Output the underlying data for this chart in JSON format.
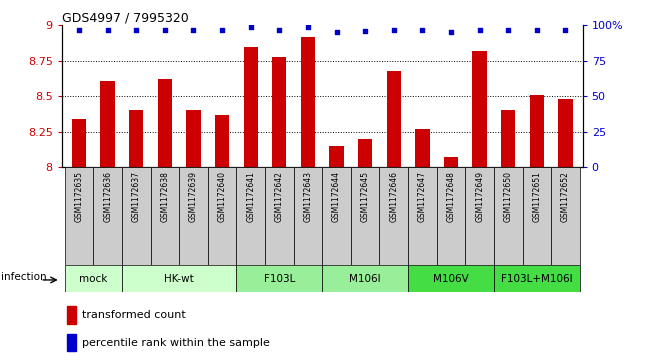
{
  "title": "GDS4997 / 7995320",
  "samples": [
    "GSM1172635",
    "GSM1172636",
    "GSM1172637",
    "GSM1172638",
    "GSM1172639",
    "GSM1172640",
    "GSM1172641",
    "GSM1172642",
    "GSM1172643",
    "GSM1172644",
    "GSM1172645",
    "GSM1172646",
    "GSM1172647",
    "GSM1172648",
    "GSM1172649",
    "GSM1172650",
    "GSM1172651",
    "GSM1172652"
  ],
  "bar_values": [
    8.34,
    8.61,
    8.4,
    8.62,
    8.4,
    8.37,
    8.85,
    8.78,
    8.92,
    8.15,
    8.2,
    8.68,
    8.27,
    8.07,
    8.82,
    8.4,
    8.51,
    8.48
  ],
  "percentile_values": [
    97,
    97,
    97,
    97,
    97,
    97,
    99,
    97,
    99,
    95,
    96,
    97,
    97,
    95,
    97,
    97,
    97,
    97
  ],
  "bar_color": "#cc0000",
  "dot_color": "#0000cc",
  "ylim_left": [
    8.0,
    9.0
  ],
  "ylim_right": [
    0,
    100
  ],
  "yticks_left": [
    8.0,
    8.25,
    8.5,
    8.75,
    9.0
  ],
  "yticks_right": [
    0,
    25,
    50,
    75,
    100
  ],
  "ytick_labels_right": [
    "0",
    "25",
    "50",
    "75",
    "100%"
  ],
  "ytick_labels_left": [
    "8",
    "8.25",
    "8.5",
    "8.75",
    "9"
  ],
  "group_ranges": [
    {
      "label": "mock",
      "start": 0,
      "end": 1,
      "color": "#ccffcc"
    },
    {
      "label": "HK-wt",
      "start": 2,
      "end": 5,
      "color": "#ccffcc"
    },
    {
      "label": "F103L",
      "start": 6,
      "end": 8,
      "color": "#99ee99"
    },
    {
      "label": "M106I",
      "start": 9,
      "end": 11,
      "color": "#99ee99"
    },
    {
      "label": "M106V",
      "start": 12,
      "end": 14,
      "color": "#44dd44"
    },
    {
      "label": "F103L+M106I",
      "start": 15,
      "end": 17,
      "color": "#44dd44"
    }
  ],
  "infection_label": "infection",
  "legend_bar_label": "transformed count",
  "legend_dot_label": "percentile rank within the sample",
  "bg_color": "#ffffff",
  "tick_color_left": "#cc0000",
  "tick_color_right": "#0000cc",
  "sample_bg_color": "#cccccc",
  "grid_yticks": [
    8.25,
    8.5,
    8.75
  ]
}
